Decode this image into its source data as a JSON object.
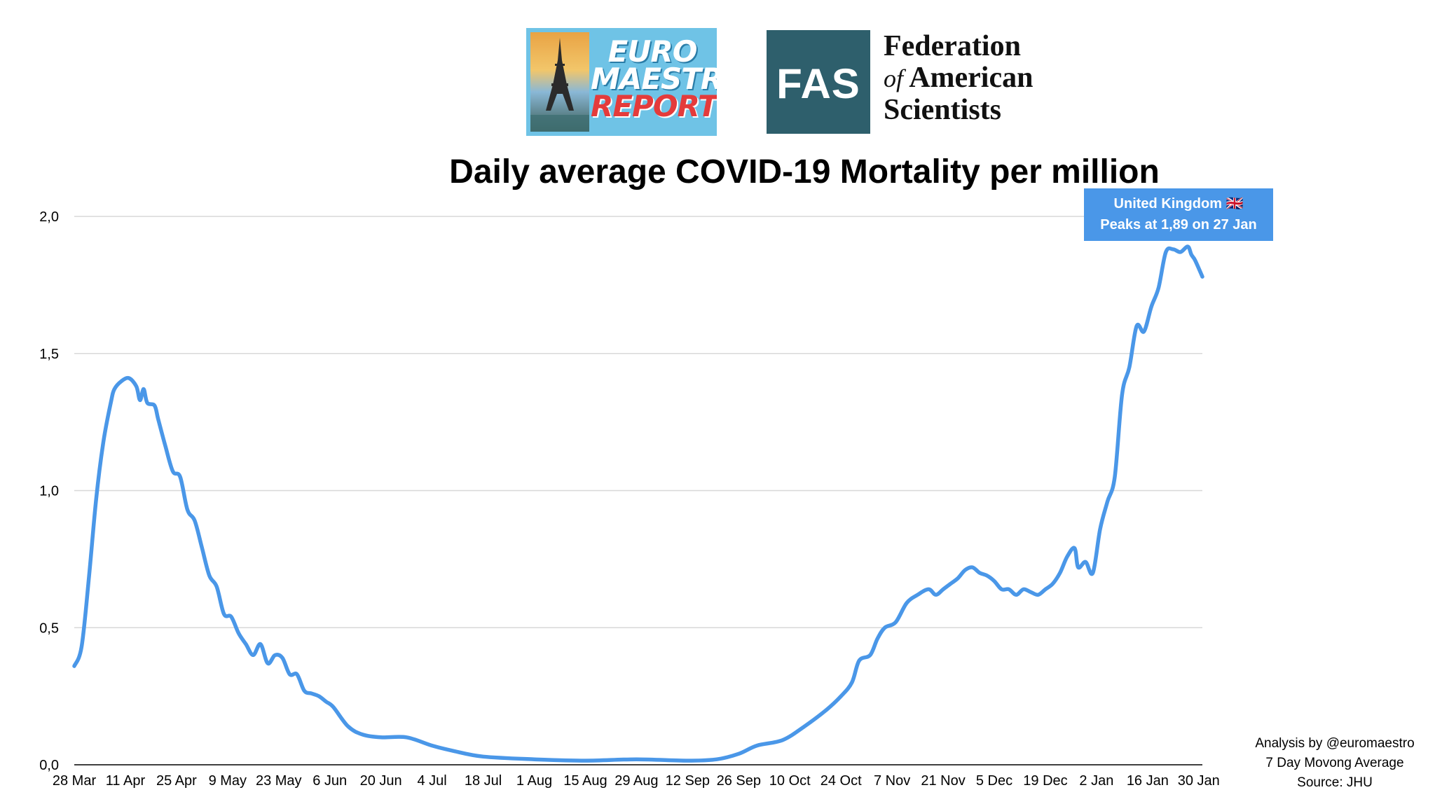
{
  "logos": {
    "euro": {
      "line1": "EURO",
      "line2": "MAESTRO",
      "line3": "REPORTS"
    },
    "fas": {
      "mark": "FAS",
      "name_line1": "Federation",
      "name_of": "of",
      "name_line2": "American",
      "name_line3": "Scientists"
    }
  },
  "callout": {
    "line1": "United Kingdom 🇬🇧",
    "line2": "Peaks at 1,89 on 27 Jan"
  },
  "notes": {
    "line1": "Analysis by @euromaestro",
    "line2": "7 Day Movong Average",
    "line3": "Source: JHU"
  },
  "colors": {
    "line": "#4a97e8",
    "callout": "#4a97e8",
    "grid": "#d8d8d8",
    "fas": "#2e5f6c",
    "euro_bg": "#6fc3e6"
  },
  "chart_data": {
    "type": "line",
    "title": "Daily average COVID-19 Mortality per million",
    "xlabel": "",
    "ylabel": "",
    "ylim": [
      0,
      2.0
    ],
    "yticks": [
      "0,0",
      "0,5",
      "1,0",
      "1,5",
      "2,0"
    ],
    "ytick_values": [
      0,
      0.5,
      1.0,
      1.5,
      2.0
    ],
    "grid": true,
    "x_start": "28 Mar",
    "x_end": "31 Jan",
    "xticks": [
      "28 Mar",
      "11 Apr",
      "25 Apr",
      "9 May",
      "23 May",
      "6 Jun",
      "20 Jun",
      "4 Jul",
      "18 Jul",
      "1 Aug",
      "15 Aug",
      "29 Aug",
      "12 Sep",
      "26 Sep",
      "10 Oct",
      "24 Oct",
      "7 Nov",
      "21 Nov",
      "5 Dec",
      "19 Dec",
      "2 Jan",
      "16 Jan",
      "30 Jan"
    ],
    "series": [
      {
        "name": "United Kingdom",
        "color": "#4a97e8",
        "x": [
          "28 Mar",
          "30 Mar",
          "1 Apr",
          "3 Apr",
          "5 Apr",
          "7 Apr",
          "8 Apr",
          "10 Apr",
          "12 Apr",
          "14 Apr",
          "15 Apr",
          "16 Apr",
          "17 Apr",
          "19 Apr",
          "20 Apr",
          "22 Apr",
          "24 Apr",
          "26 Apr",
          "28 Apr",
          "30 Apr",
          "2 May",
          "4 May",
          "6 May",
          "8 May",
          "10 May",
          "12 May",
          "14 May",
          "16 May",
          "18 May",
          "20 May",
          "22 May",
          "24 May",
          "26 May",
          "28 May",
          "30 May",
          "1 Jun",
          "3 Jun",
          "5 Jun",
          "7 Jun",
          "11 Jun",
          "15 Jun",
          "20 Jun",
          "27 Jun",
          "4 Jul",
          "10 Jul",
          "18 Jul",
          "1 Aug",
          "15 Aug",
          "29 Aug",
          "12 Sep",
          "20 Sep",
          "26 Sep",
          "1 Oct",
          "8 Oct",
          "14 Oct",
          "20 Oct",
          "24 Oct",
          "27 Oct",
          "29 Oct",
          "1 Nov",
          "3 Nov",
          "5 Nov",
          "8 Nov",
          "11 Nov",
          "14 Nov",
          "17 Nov",
          "19 Nov",
          "21 Nov",
          "23 Nov",
          "25 Nov",
          "27 Nov",
          "29 Nov",
          "1 Dec",
          "3 Dec",
          "5 Dec",
          "7 Dec",
          "9 Dec",
          "11 Dec",
          "13 Dec",
          "15 Dec",
          "17 Dec",
          "19 Dec",
          "21 Dec",
          "23 Dec",
          "25 Dec",
          "27 Dec",
          "28 Dec",
          "30 Dec",
          "1 Jan",
          "3 Jan",
          "5 Jan",
          "7 Jan",
          "9 Jan",
          "11 Jan",
          "13 Jan",
          "15 Jan",
          "17 Jan",
          "19 Jan",
          "21 Jan",
          "23 Jan",
          "25 Jan",
          "27 Jan",
          "28 Jan",
          "29 Jan",
          "31 Jan"
        ],
        "values": [
          0.36,
          0.43,
          0.68,
          0.97,
          1.18,
          1.32,
          1.37,
          1.4,
          1.41,
          1.38,
          1.33,
          1.37,
          1.32,
          1.31,
          1.26,
          1.16,
          1.07,
          1.05,
          0.93,
          0.89,
          0.79,
          0.69,
          0.65,
          0.55,
          0.54,
          0.48,
          0.44,
          0.4,
          0.44,
          0.37,
          0.4,
          0.39,
          0.33,
          0.33,
          0.27,
          0.26,
          0.25,
          0.23,
          0.21,
          0.14,
          0.11,
          0.1,
          0.1,
          0.07,
          0.05,
          0.03,
          0.02,
          0.015,
          0.02,
          0.015,
          0.02,
          0.04,
          0.07,
          0.09,
          0.14,
          0.2,
          0.25,
          0.3,
          0.38,
          0.4,
          0.46,
          0.5,
          0.52,
          0.59,
          0.62,
          0.64,
          0.62,
          0.64,
          0.66,
          0.68,
          0.71,
          0.72,
          0.7,
          0.69,
          0.67,
          0.64,
          0.64,
          0.62,
          0.64,
          0.63,
          0.62,
          0.64,
          0.66,
          0.7,
          0.76,
          0.79,
          0.72,
          0.74,
          0.7,
          0.86,
          0.96,
          1.05,
          1.35,
          1.45,
          1.6,
          1.58,
          1.67,
          1.74,
          1.87,
          1.88,
          1.87,
          1.89,
          1.86,
          1.84,
          1.78
        ]
      }
    ]
  }
}
